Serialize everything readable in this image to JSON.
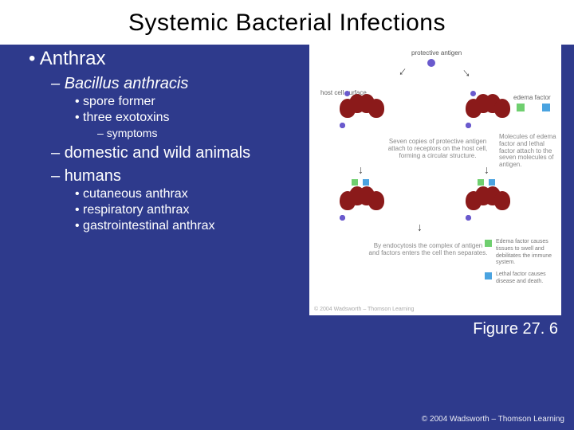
{
  "title": "Systemic Bacterial Infections",
  "bullets": {
    "l1": "Anthrax",
    "l2a": "Bacillus anthracis",
    "l3a": "spore former",
    "l3b": "three exotoxins",
    "l4a": "symptoms",
    "l2b": "domestic and wild animals",
    "l2c": "humans",
    "l3c": "cutaneous anthrax",
    "l3d": "respiratory anthrax",
    "l3e": "gastrointestinal anthrax"
  },
  "figure": {
    "caption": "Figure 27. 6",
    "pa_label": "protective antigen",
    "receptor_label": "host cell surface",
    "ef_label": "edema factor",
    "lf_label": "lethal factor",
    "mid_text": "Seven copies of protective antigen attach to receptors on the host cell, forming a circular structure.",
    "right_text1": "Molecules of edema factor and lethal factor attach to the seven molecules of antigen.",
    "bottom_text": "By endocytosis the complex of antigen and factors enters the cell then separates.",
    "legend_ef": "Edema factor causes tissues to swell and debilitates the immune system.",
    "legend_lf": "Lethal factor causes disease and death.",
    "credit": "© 2004 Wadsworth – Thomson Learning",
    "colors": {
      "pa": "#6a5acd",
      "cell": "#8b1a1a",
      "ef": "#6fcf6f",
      "lf": "#4aa3e0",
      "bg": "#ffffff"
    }
  },
  "copyright": "© 2004 Wadsworth – Thomson Learning",
  "slide_bg": "#2e3a8c"
}
